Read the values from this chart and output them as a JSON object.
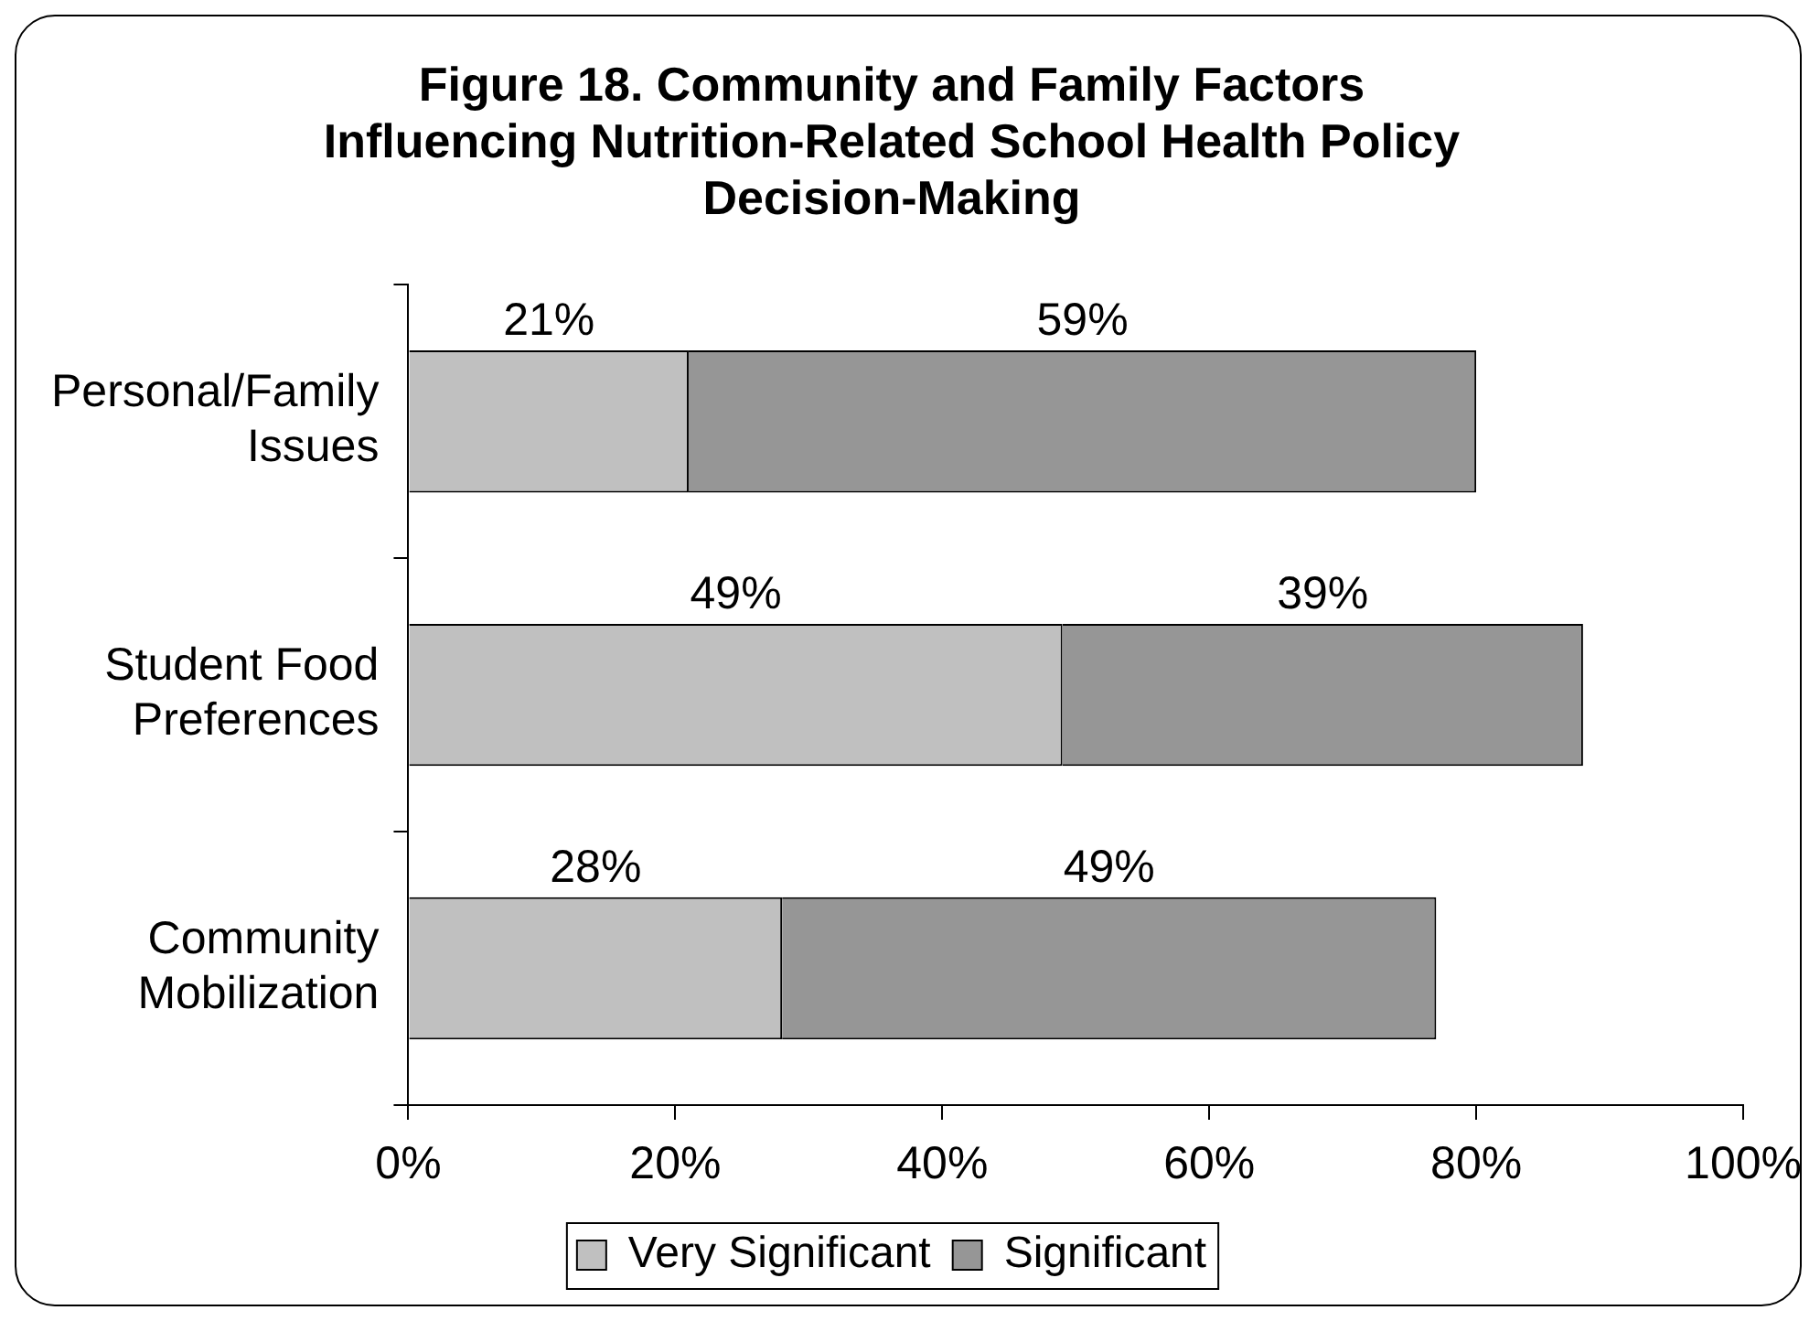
{
  "chart_data": {
    "type": "bar",
    "orientation": "horizontal",
    "stacked": true,
    "title": "Figure 18. Community and Family Factors\nInfluencing Nutrition-Related School Health Policy\nDecision-Making",
    "categories": [
      "Personal/Family Issues",
      "Student Food Preferences",
      "Community Mobilization"
    ],
    "series": [
      {
        "name": "Very Significant",
        "color": "#c0c0c0",
        "values": [
          21,
          49,
          28
        ],
        "value_labels": [
          "21%",
          "49%",
          "28%"
        ]
      },
      {
        "name": "Significant",
        "color": "#969696",
        "values": [
          59,
          39,
          49
        ],
        "value_labels": [
          "59%",
          "39%",
          "49%"
        ]
      }
    ],
    "xlim": [
      0,
      100
    ],
    "xticks": [
      {
        "value": 0,
        "label": "0%"
      },
      {
        "value": 20,
        "label": "20%"
      },
      {
        "value": 40,
        "label": "40%"
      },
      {
        "value": 60,
        "label": "60%"
      },
      {
        "value": 80,
        "label": "80%"
      },
      {
        "value": 100,
        "label": "100%"
      }
    ],
    "legend": "bottom"
  }
}
